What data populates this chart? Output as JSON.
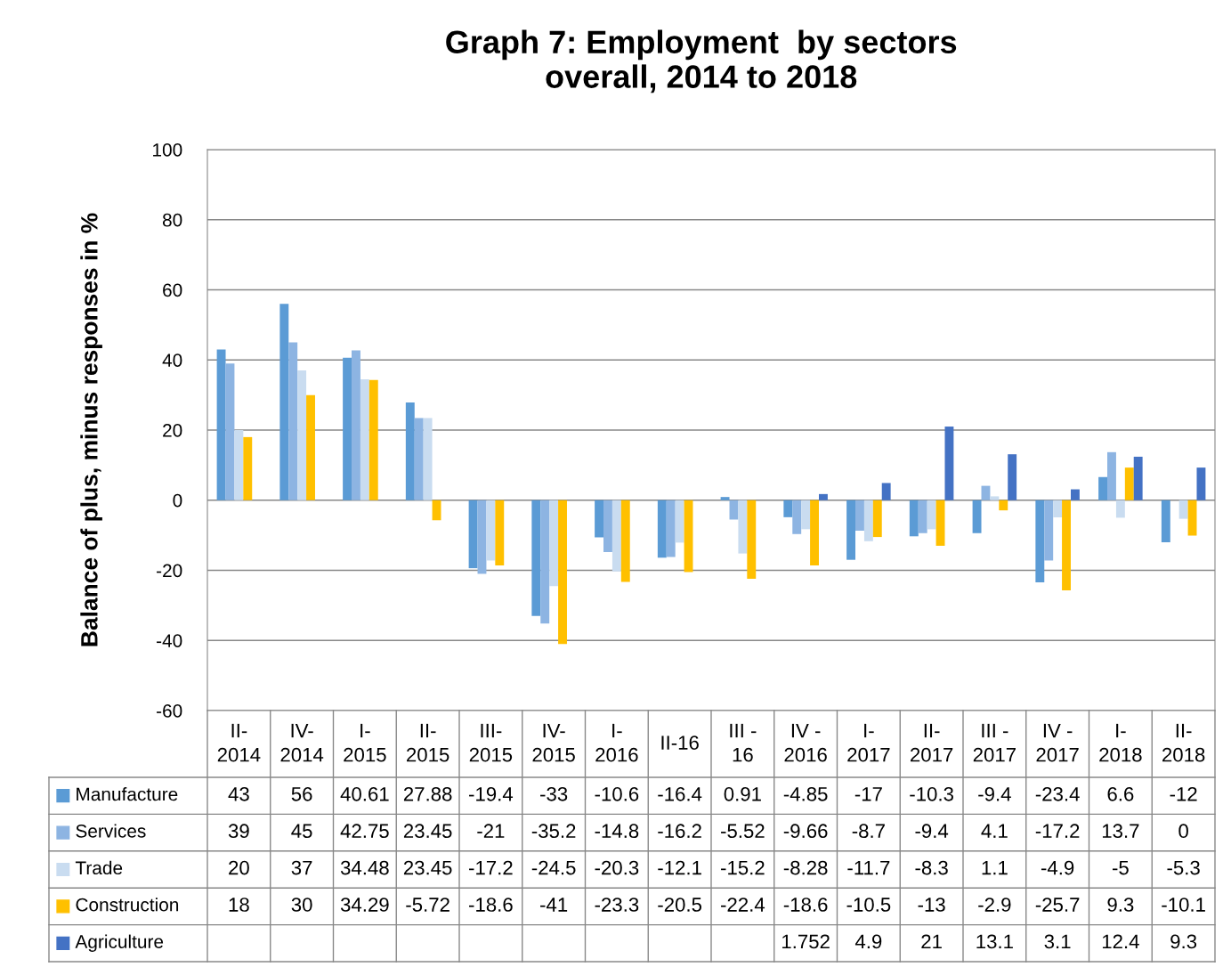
{
  "chart_data": {
    "type": "bar",
    "title": "Graph 7: Employment  by sectors\noverall, 2014 to 2018",
    "ylabel": "Balance of plus, minus responses in %",
    "categories": [
      "II-2014",
      "IV-2014",
      "I-2015",
      "II-2015",
      "III-2015",
      "IV-2015",
      "I-2016",
      "II-16",
      "III - 16",
      "IV - 2016",
      "I-2017",
      "II-2017",
      "III - 2017",
      "IV - 2017",
      "I-2018",
      "II-2018"
    ],
    "series": [
      {
        "name": "Manufacture",
        "color": "#5b9bd5",
        "values": [
          43,
          56,
          40.61,
          27.88,
          -19.4,
          -33,
          -10.6,
          -16.4,
          0.91,
          -4.85,
          -17,
          -10.3,
          -9.4,
          -23.4,
          6.6,
          -12
        ]
      },
      {
        "name": "Services",
        "color": "#8db4e2",
        "values": [
          39,
          45,
          42.75,
          23.45,
          -21,
          -35.2,
          -14.8,
          -16.2,
          -5.52,
          -9.66,
          -8.7,
          -9.4,
          4.1,
          -17.2,
          13.7,
          0
        ]
      },
      {
        "name": "Trade",
        "color": "#c9dcf0",
        "values": [
          20,
          37,
          34.48,
          23.45,
          -17.2,
          -24.5,
          -20.3,
          -12.1,
          -15.2,
          -8.28,
          -11.7,
          -8.3,
          1.1,
          -4.9,
          -5,
          -5.3
        ]
      },
      {
        "name": "Construction",
        "color": "#ffc000",
        "values": [
          18,
          30,
          34.29,
          -5.72,
          -18.6,
          -41,
          -23.3,
          -20.5,
          -22.4,
          -18.6,
          -10.5,
          -13,
          -2.9,
          -25.7,
          9.3,
          -10.1
        ]
      },
      {
        "name": "Agriculture",
        "color": "#4472c4",
        "values": [
          null,
          null,
          null,
          null,
          null,
          null,
          null,
          null,
          null,
          1.752,
          4.9,
          21,
          13.1,
          3.1,
          12.4,
          9.3
        ]
      }
    ],
    "ylim": [
      -60,
      100
    ],
    "yticks": [
      -60,
      -40,
      -20,
      0,
      20,
      40,
      60,
      80,
      100
    ],
    "grid": "y",
    "legend": "bottom left",
    "data_labels": true
  }
}
